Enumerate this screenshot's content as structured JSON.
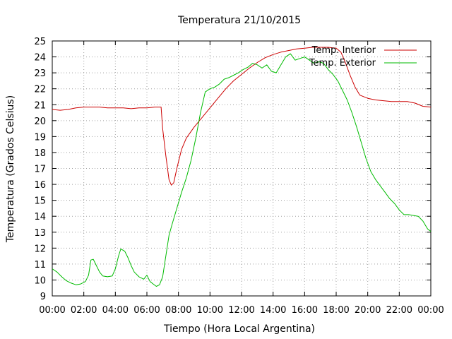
{
  "chart_data": {
    "type": "line",
    "title": "Temperatura 21/10/2015",
    "xlabel": "Tiempo (Hora Local Argentina)",
    "ylabel": "Temperatura (Grados Celsius)",
    "x_unit": "hours",
    "xlim": [
      0,
      24
    ],
    "ylim": [
      9,
      25
    ],
    "x_ticks": [
      {
        "value": 0,
        "label": "00:00"
      },
      {
        "value": 2,
        "label": "02:00"
      },
      {
        "value": 4,
        "label": "04:00"
      },
      {
        "value": 6,
        "label": "06:00"
      },
      {
        "value": 8,
        "label": "08:00"
      },
      {
        "value": 10,
        "label": "10:00"
      },
      {
        "value": 12,
        "label": "12:00"
      },
      {
        "value": 14,
        "label": "14:00"
      },
      {
        "value": 16,
        "label": "16:00"
      },
      {
        "value": 18,
        "label": "18:00"
      },
      {
        "value": 20,
        "label": "20:00"
      },
      {
        "value": 22,
        "label": "22:00"
      },
      {
        "value": 24,
        "label": "00:00"
      }
    ],
    "y_ticks": [
      9,
      10,
      11,
      12,
      13,
      14,
      15,
      16,
      17,
      18,
      19,
      20,
      21,
      22,
      23,
      24,
      25
    ],
    "grid": true,
    "legend_position": "top-right",
    "series": [
      {
        "name": "Temp. Interior",
        "color": "#cc0000",
        "points": [
          [
            0,
            20.7
          ],
          [
            0.5,
            20.65
          ],
          [
            1,
            20.7
          ],
          [
            1.5,
            20.8
          ],
          [
            2,
            20.85
          ],
          [
            2.5,
            20.85
          ],
          [
            3,
            20.85
          ],
          [
            3.5,
            20.8
          ],
          [
            4,
            20.8
          ],
          [
            4.5,
            20.8
          ],
          [
            5,
            20.75
          ],
          [
            5.5,
            20.8
          ],
          [
            6,
            20.8
          ],
          [
            6.5,
            20.85
          ],
          [
            6.9,
            20.85
          ],
          [
            7.0,
            19.5
          ],
          [
            7.2,
            17.8
          ],
          [
            7.4,
            16.3
          ],
          [
            7.55,
            15.95
          ],
          [
            7.7,
            16.1
          ],
          [
            7.9,
            17.0
          ],
          [
            8.2,
            18.2
          ],
          [
            8.5,
            18.9
          ],
          [
            9,
            19.6
          ],
          [
            9.5,
            20.2
          ],
          [
            10,
            20.8
          ],
          [
            10.5,
            21.4
          ],
          [
            11,
            22.0
          ],
          [
            11.5,
            22.5
          ],
          [
            12,
            22.9
          ],
          [
            12.5,
            23.3
          ],
          [
            13,
            23.65
          ],
          [
            13.5,
            23.95
          ],
          [
            14,
            24.15
          ],
          [
            14.5,
            24.3
          ],
          [
            15,
            24.4
          ],
          [
            15.5,
            24.5
          ],
          [
            16,
            24.55
          ],
          [
            16.5,
            24.6
          ],
          [
            17,
            24.6
          ],
          [
            17.5,
            24.6
          ],
          [
            18,
            24.55
          ],
          [
            18.3,
            24.3
          ],
          [
            18.6,
            23.6
          ],
          [
            18.9,
            22.8
          ],
          [
            19.2,
            22.1
          ],
          [
            19.5,
            21.6
          ],
          [
            20,
            21.4
          ],
          [
            20.5,
            21.3
          ],
          [
            21,
            21.25
          ],
          [
            21.5,
            21.2
          ],
          [
            22,
            21.2
          ],
          [
            22.5,
            21.2
          ],
          [
            23,
            21.1
          ],
          [
            23.5,
            20.9
          ],
          [
            24,
            20.85
          ]
        ]
      },
      {
        "name": "Temp. Exterior",
        "color": "#00bb00",
        "points": [
          [
            0,
            10.7
          ],
          [
            0.3,
            10.5
          ],
          [
            0.6,
            10.2
          ],
          [
            0.9,
            9.95
          ],
          [
            1.2,
            9.8
          ],
          [
            1.5,
            9.7
          ],
          [
            1.8,
            9.75
          ],
          [
            2.1,
            9.9
          ],
          [
            2.3,
            10.3
          ],
          [
            2.45,
            11.25
          ],
          [
            2.6,
            11.3
          ],
          [
            2.8,
            10.9
          ],
          [
            3.0,
            10.5
          ],
          [
            3.2,
            10.25
          ],
          [
            3.5,
            10.2
          ],
          [
            3.8,
            10.25
          ],
          [
            4.0,
            10.7
          ],
          [
            4.2,
            11.5
          ],
          [
            4.35,
            11.95
          ],
          [
            4.6,
            11.8
          ],
          [
            4.8,
            11.4
          ],
          [
            5.0,
            10.9
          ],
          [
            5.2,
            10.5
          ],
          [
            5.5,
            10.2
          ],
          [
            5.8,
            10.05
          ],
          [
            6.0,
            10.3
          ],
          [
            6.2,
            9.9
          ],
          [
            6.4,
            9.75
          ],
          [
            6.6,
            9.6
          ],
          [
            6.8,
            9.7
          ],
          [
            7.0,
            10.2
          ],
          [
            7.2,
            11.5
          ],
          [
            7.4,
            12.8
          ],
          [
            7.6,
            13.5
          ],
          [
            7.9,
            14.5
          ],
          [
            8.2,
            15.5
          ],
          [
            8.5,
            16.4
          ],
          [
            8.8,
            17.5
          ],
          [
            9.1,
            18.9
          ],
          [
            9.4,
            20.5
          ],
          [
            9.7,
            21.8
          ],
          [
            10.0,
            22.0
          ],
          [
            10.3,
            22.1
          ],
          [
            10.6,
            22.3
          ],
          [
            10.9,
            22.6
          ],
          [
            11.2,
            22.7
          ],
          [
            11.5,
            22.85
          ],
          [
            11.8,
            23.0
          ],
          [
            12.1,
            23.2
          ],
          [
            12.4,
            23.35
          ],
          [
            12.7,
            23.6
          ],
          [
            13.0,
            23.5
          ],
          [
            13.3,
            23.3
          ],
          [
            13.6,
            23.5
          ],
          [
            13.9,
            23.1
          ],
          [
            14.2,
            23.0
          ],
          [
            14.5,
            23.5
          ],
          [
            14.8,
            24.0
          ],
          [
            15.1,
            24.2
          ],
          [
            15.4,
            23.8
          ],
          [
            15.7,
            23.9
          ],
          [
            16.0,
            24.0
          ],
          [
            16.3,
            23.8
          ],
          [
            16.6,
            23.6
          ],
          [
            16.9,
            23.7
          ],
          [
            17.2,
            23.6
          ],
          [
            17.5,
            23.2
          ],
          [
            17.8,
            22.9
          ],
          [
            18.1,
            22.5
          ],
          [
            18.4,
            21.9
          ],
          [
            18.7,
            21.3
          ],
          [
            19.0,
            20.5
          ],
          [
            19.3,
            19.6
          ],
          [
            19.6,
            18.6
          ],
          [
            19.9,
            17.6
          ],
          [
            20.2,
            16.8
          ],
          [
            20.5,
            16.3
          ],
          [
            20.8,
            15.9
          ],
          [
            21.1,
            15.5
          ],
          [
            21.4,
            15.1
          ],
          [
            21.7,
            14.8
          ],
          [
            22.0,
            14.4
          ],
          [
            22.3,
            14.1
          ],
          [
            22.6,
            14.1
          ],
          [
            22.9,
            14.05
          ],
          [
            23.2,
            14.0
          ],
          [
            23.5,
            13.7
          ],
          [
            23.8,
            13.2
          ],
          [
            24,
            13.05
          ]
        ]
      }
    ]
  }
}
